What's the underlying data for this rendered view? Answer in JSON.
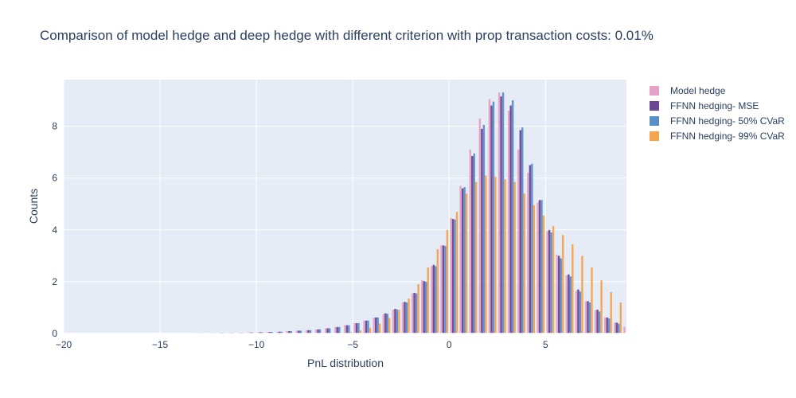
{
  "chart_data": {
    "type": "bar",
    "title": "Comparison of model hedge and deep hedge with different criterion with prop transaction costs: 0.01%",
    "xlabel": "PnL distribution",
    "ylabel": "Counts",
    "xlim": [
      -20,
      9.2
    ],
    "ylim": [
      0,
      9.8
    ],
    "x_ticks": [
      -20,
      -15,
      -10,
      -5,
      0,
      5
    ],
    "y_ticks": [
      0,
      2,
      4,
      6,
      8
    ],
    "grid": true,
    "legend_position": "top-right",
    "bin_start": -20,
    "bin_width": 0.5,
    "series": [
      {
        "name": "Model hedge",
        "color": "#e6a2c6",
        "values": [
          0.01,
          0.01,
          0.01,
          0.01,
          0.01,
          0.01,
          0.01,
          0.01,
          0.01,
          0.01,
          0.01,
          0.01,
          0.01,
          0.01,
          0.02,
          0.02,
          0.03,
          0.03,
          0.03,
          0.04,
          0.05,
          0.06,
          0.07,
          0.09,
          0.11,
          0.13,
          0.16,
          0.2,
          0.25,
          0.32,
          0.4,
          0.5,
          0.62,
          0.75,
          0.92,
          1.2,
          1.55,
          2.05,
          2.6,
          3.4,
          4.45,
          5.7,
          7.1,
          8.3,
          9.05,
          9.3,
          8.6,
          7.1,
          6.2,
          5.05,
          3.95,
          3.05,
          2.25,
          1.65,
          1.25,
          0.9,
          0.62,
          0.42,
          0.26,
          0.16,
          0.08,
          0.03,
          0.01,
          0.0
        ]
      },
      {
        "name": "FFNN hedging- MSE",
        "color": "#6b4795",
        "values": [
          0.01,
          0.01,
          0.01,
          0.01,
          0.01,
          0.01,
          0.01,
          0.01,
          0.01,
          0.01,
          0.01,
          0.01,
          0.01,
          0.01,
          0.02,
          0.02,
          0.03,
          0.03,
          0.03,
          0.04,
          0.05,
          0.06,
          0.07,
          0.09,
          0.11,
          0.13,
          0.16,
          0.2,
          0.25,
          0.32,
          0.4,
          0.5,
          0.62,
          0.78,
          0.95,
          1.22,
          1.57,
          2.02,
          2.65,
          3.4,
          4.42,
          5.6,
          6.85,
          7.9,
          8.8,
          9.15,
          8.8,
          7.85,
          6.5,
          5.15,
          4.0,
          3.0,
          2.28,
          1.7,
          1.25,
          0.92,
          0.62,
          0.42,
          0.25,
          0.15,
          0.07,
          0.03,
          0.01,
          0.0
        ]
      },
      {
        "name": "FFNN hedging- 50% CVaR",
        "color": "#5b8fc7",
        "values": [
          0.01,
          0.01,
          0.01,
          0.01,
          0.01,
          0.01,
          0.01,
          0.01,
          0.01,
          0.01,
          0.01,
          0.01,
          0.01,
          0.01,
          0.02,
          0.02,
          0.03,
          0.03,
          0.03,
          0.04,
          0.05,
          0.06,
          0.07,
          0.09,
          0.11,
          0.13,
          0.16,
          0.2,
          0.25,
          0.32,
          0.4,
          0.5,
          0.62,
          0.76,
          0.93,
          1.2,
          1.55,
          2.0,
          2.6,
          3.38,
          4.4,
          5.65,
          6.95,
          8.05,
          8.95,
          9.3,
          9.0,
          7.95,
          6.55,
          5.15,
          3.9,
          2.9,
          2.2,
          1.62,
          1.2,
          0.85,
          0.58,
          0.38,
          0.22,
          0.13,
          0.06,
          0.02,
          0.01,
          0.0
        ]
      },
      {
        "name": "FFNN hedging- 99% CVaR",
        "color": "#f5a34f",
        "values": [
          0.0,
          0.0,
          0.0,
          0.0,
          0.0,
          0.0,
          0.0,
          0.0,
          0.0,
          0.0,
          0.0,
          0.0,
          0.0,
          0.0,
          0.0,
          0.0,
          0.0,
          0.0,
          0.0,
          0.0,
          0.0,
          0.0,
          0.0,
          0.0,
          0.0,
          0.0,
          0.0,
          0.0,
          0.0,
          0.05,
          0.12,
          0.22,
          0.38,
          0.6,
          0.92,
          1.35,
          1.9,
          2.55,
          3.25,
          4.0,
          4.7,
          5.4,
          5.85,
          6.1,
          6.05,
          5.95,
          5.85,
          5.4,
          4.95,
          4.55,
          4.15,
          3.8,
          3.45,
          3.0,
          2.55,
          2.05,
          1.6,
          1.2,
          0.85,
          0.5,
          0.25,
          0.1,
          0.03,
          0.0
        ]
      }
    ]
  }
}
